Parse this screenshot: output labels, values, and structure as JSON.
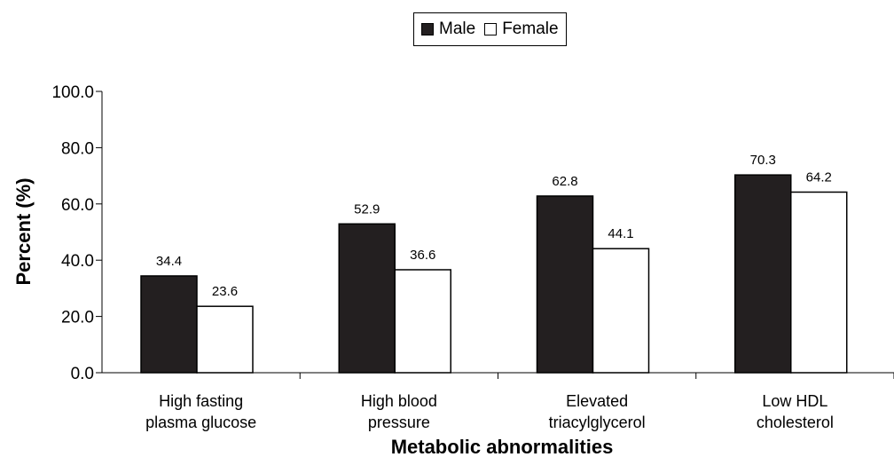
{
  "chart_data": {
    "type": "bar",
    "title": "",
    "xlabel": "Metabolic abnormalities",
    "ylabel": "Percent (%)",
    "ylim": [
      0,
      100
    ],
    "yticks": [
      "0.0",
      "20.0",
      "40.0",
      "60.0",
      "80.0",
      "100.0"
    ],
    "categories": [
      [
        "High fasting",
        "plasma glucose"
      ],
      [
        "High blood",
        "pressure"
      ],
      [
        "Elevated",
        "triacylglycerol"
      ],
      [
        "Low HDL",
        "cholesterol"
      ]
    ],
    "series": [
      {
        "name": "Male",
        "color": "#231f20",
        "values": [
          34.4,
          52.9,
          62.8,
          70.3
        ],
        "labels": [
          "34.4",
          "52.9",
          "62.8",
          "70.3"
        ]
      },
      {
        "name": "Female",
        "color": "#ffffff",
        "values": [
          23.6,
          36.6,
          44.1,
          64.2
        ],
        "labels": [
          "23.6",
          "36.6",
          "44.1",
          "64.2"
        ]
      }
    ],
    "legend_position": "top-center",
    "grid": false
  }
}
